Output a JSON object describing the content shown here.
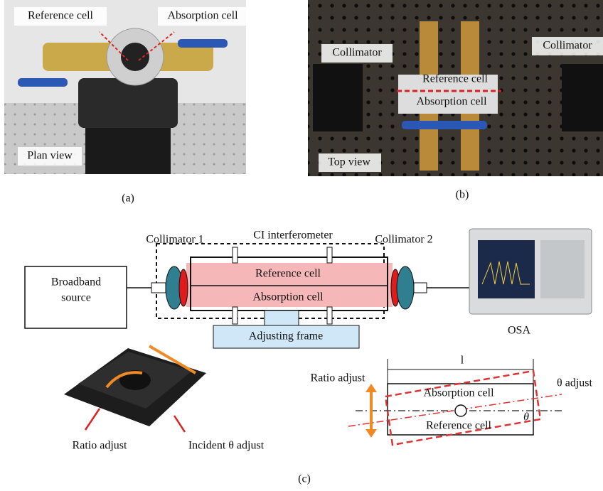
{
  "panel_a": {
    "labels": [
      "Reference cell",
      "Absorption cell",
      "Plan view"
    ],
    "caption": "(a)"
  },
  "panel_b": {
    "labels": [
      "Collimator",
      "Collimator",
      "Reference cell",
      "Absorption cell",
      "Top view"
    ],
    "caption": "(b)"
  },
  "panel_c": {
    "collimator_1": "Collimator 1",
    "interferometer": "CI interferometer",
    "collimator_2": "Collimator 2",
    "source": [
      "Broadband",
      "source"
    ],
    "reference_cell": "Reference cell",
    "absorption_cell": "Absorption cell",
    "adjusting_frame": "Adjusting frame",
    "osa": "OSA",
    "stage_labels": [
      "Ratio adjust",
      "Incident θ adjust"
    ],
    "schematic": {
      "length": "l",
      "ratio_adjust": "Ratio adjust",
      "theta_adjust": "θ adjust",
      "absorption_cell": "Absorption cell",
      "reference_cell": "Reference cell",
      "angle": "θ"
    },
    "caption": "(c)"
  }
}
